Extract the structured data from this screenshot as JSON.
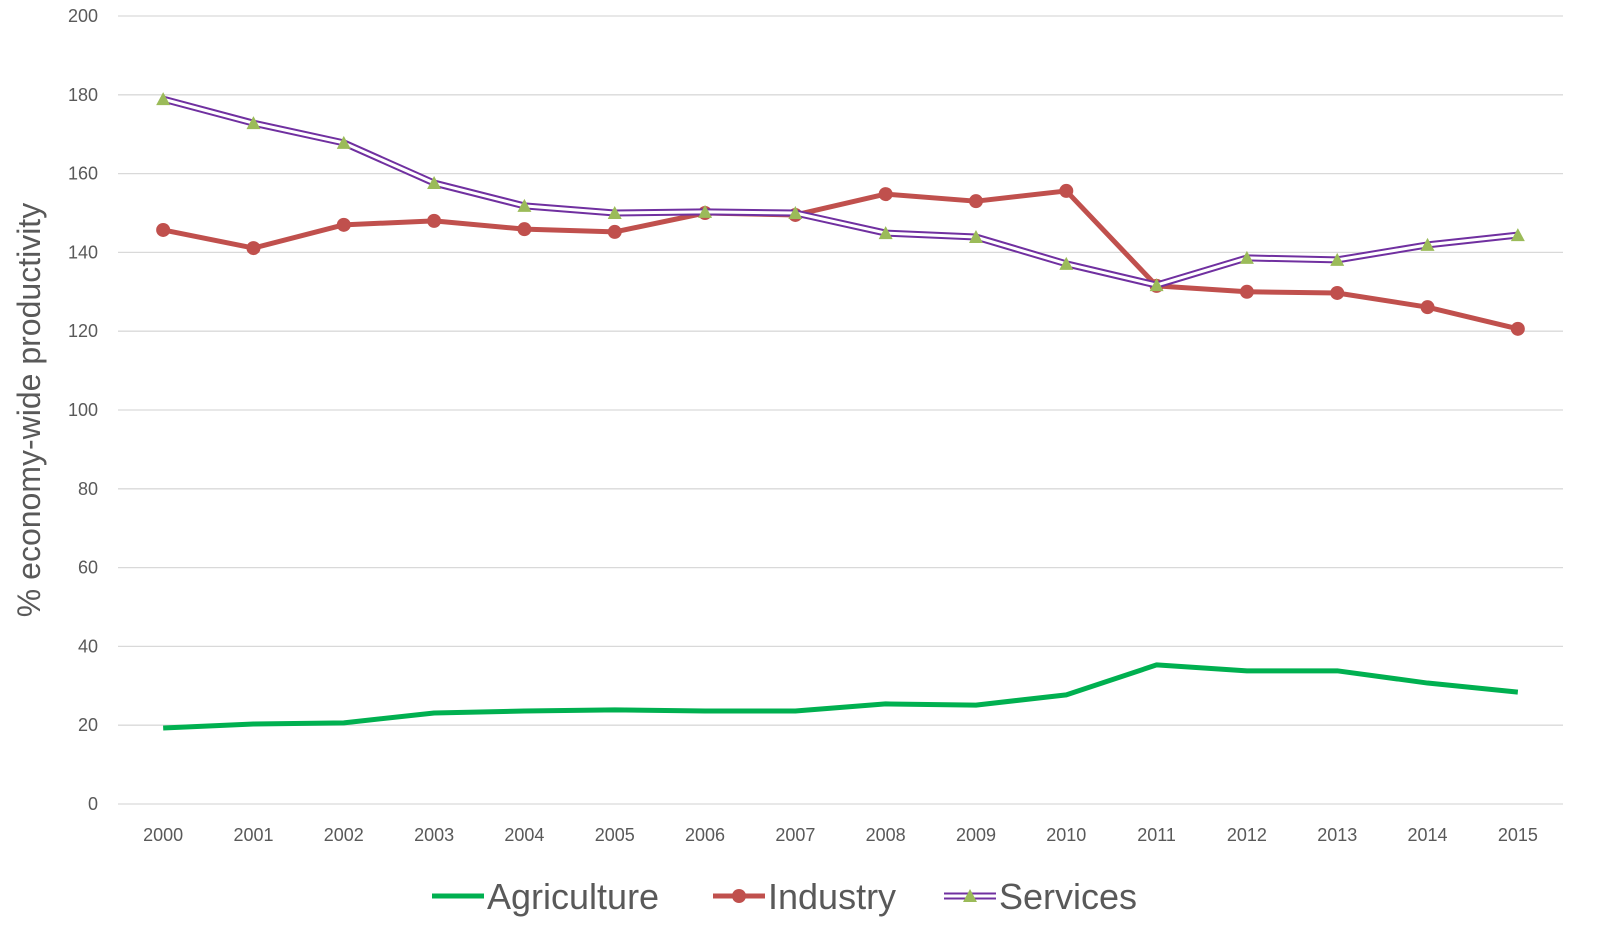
{
  "chart_data": {
    "type": "line",
    "y_label": "% economy-wide productivity",
    "categories": [
      "2000",
      "2001",
      "2002",
      "2003",
      "2004",
      "2005",
      "2006",
      "2007",
      "2008",
      "2009",
      "2010",
      "2011",
      "2012",
      "2013",
      "2014",
      "2015"
    ],
    "series": [
      {
        "name": "Agriculture",
        "color": "#00b050",
        "marker": "none",
        "values": [
          19.3,
          20.3,
          20.6,
          23.1,
          23.6,
          23.9,
          23.6,
          23.6,
          25.4,
          25.1,
          27.7,
          35.3,
          33.8,
          33.8,
          30.7,
          28.4
        ]
      },
      {
        "name": "Industry",
        "color": "#c0504d",
        "marker": "circle",
        "values": [
          145.7,
          141.1,
          147.0,
          148.0,
          145.9,
          145.2,
          150.0,
          149.5,
          154.8,
          153.0,
          155.6,
          131.5,
          130.0,
          129.7,
          126.1,
          120.6
        ]
      },
      {
        "name": "Services",
        "color": "#7030a0",
        "marker": "triangle",
        "marker_color": "#9bbb59",
        "double_line": true,
        "values": [
          178.9,
          172.8,
          167.8,
          157.6,
          151.8,
          150.0,
          150.3,
          150.0,
          144.9,
          143.9,
          137.1,
          131.7,
          138.6,
          138.1,
          141.9,
          144.4
        ]
      }
    ],
    "ylim": [
      0,
      200
    ],
    "yticks": [
      0,
      20,
      40,
      60,
      80,
      100,
      120,
      140,
      160,
      180,
      200
    ],
    "grid": true,
    "legend": "bottom"
  }
}
